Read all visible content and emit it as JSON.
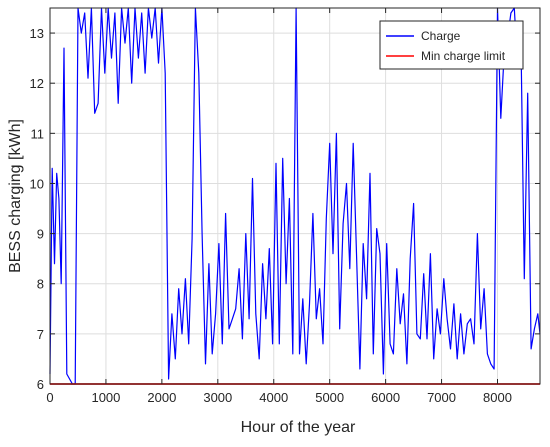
{
  "chart_data": {
    "type": "line",
    "xlabel": "Hour of the year",
    "ylabel": "BESS charging [kWh]",
    "xlim": [
      0,
      8760
    ],
    "ylim": [
      6,
      13.5
    ],
    "xticks": [
      0,
      1000,
      2000,
      3000,
      4000,
      5000,
      6000,
      7000,
      8000
    ],
    "xtick_labels": [
      "0",
      "1000",
      "2000",
      "3000",
      "4000",
      "5000",
      "6000",
      "7000",
      "8000"
    ],
    "yticks": [
      6,
      7,
      8,
      9,
      10,
      11,
      12,
      13
    ],
    "ytick_labels": [
      "6",
      "7",
      "8",
      "9",
      "10",
      "11",
      "12",
      "13"
    ],
    "grid": true,
    "legend_position": "top-right",
    "series": [
      {
        "name": "Charge",
        "color": "#0000ff",
        "sampling_note": "approximate envelope of dense hourly data",
        "x": [
          0,
          40,
          80,
          120,
          160,
          200,
          250,
          300,
          350,
          400,
          450,
          500,
          560,
          620,
          680,
          740,
          800,
          860,
          920,
          980,
          1040,
          1100,
          1160,
          1220,
          1280,
          1340,
          1400,
          1460,
          1520,
          1580,
          1640,
          1700,
          1760,
          1820,
          1880,
          1940,
          2000,
          2060,
          2120,
          2180,
          2240,
          2300,
          2360,
          2420,
          2480,
          2540,
          2600,
          2660,
          2720,
          2780,
          2840,
          2900,
          2960,
          3020,
          3080,
          3140,
          3200,
          3260,
          3320,
          3380,
          3440,
          3500,
          3560,
          3620,
          3680,
          3740,
          3800,
          3860,
          3920,
          3980,
          4040,
          4100,
          4160,
          4220,
          4280,
          4340,
          4400,
          4460,
          4520,
          4580,
          4640,
          4700,
          4760,
          4820,
          4880,
          4940,
          5000,
          5060,
          5120,
          5180,
          5240,
          5300,
          5360,
          5420,
          5480,
          5540,
          5600,
          5660,
          5720,
          5780,
          5840,
          5900,
          5960,
          6020,
          6080,
          6140,
          6200,
          6260,
          6320,
          6380,
          6440,
          6500,
          6560,
          6620,
          6680,
          6740,
          6800,
          6860,
          6920,
          6980,
          7040,
          7100,
          7160,
          7220,
          7280,
          7340,
          7400,
          7460,
          7520,
          7580,
          7640,
          7700,
          7760,
          7820,
          7880,
          7940,
          8000,
          8060,
          8120,
          8180,
          8240,
          8300,
          8360,
          8420,
          8480,
          8540,
          8600,
          8660,
          8720,
          8760
        ],
        "y": [
          6.2,
          10.3,
          8.4,
          10.2,
          9.7,
          8.0,
          12.7,
          6.2,
          6.1,
          6.0,
          6.0,
          13.5,
          13.0,
          13.4,
          12.1,
          13.5,
          11.4,
          11.6,
          13.5,
          12.2,
          13.5,
          12.5,
          13.4,
          11.6,
          13.5,
          12.8,
          13.5,
          12.0,
          13.5,
          12.5,
          13.4,
          12.2,
          13.5,
          12.9,
          13.5,
          12.4,
          13.5,
          12.2,
          6.1,
          7.4,
          6.5,
          7.9,
          7.0,
          8.1,
          6.8,
          8.9,
          13.5,
          12.2,
          9.0,
          6.4,
          8.4,
          6.6,
          7.4,
          8.8,
          6.8,
          9.4,
          7.1,
          7.3,
          7.5,
          8.3,
          6.9,
          9.0,
          7.3,
          10.1,
          7.4,
          6.5,
          8.4,
          7.3,
          8.7,
          6.8,
          10.4,
          6.8,
          10.5,
          8.0,
          9.7,
          6.6,
          13.5,
          6.6,
          7.7,
          6.4,
          7.6,
          9.4,
          7.3,
          7.9,
          6.8,
          9.3,
          10.8,
          8.6,
          11.0,
          7.1,
          9.2,
          10.0,
          8.3,
          10.8,
          8.6,
          6.3,
          8.8,
          7.7,
          10.2,
          6.6,
          9.1,
          8.6,
          6.2,
          8.8,
          6.8,
          6.6,
          8.3,
          7.2,
          7.8,
          6.4,
          8.5,
          9.6,
          7.0,
          6.9,
          8.2,
          6.9,
          8.6,
          6.5,
          7.5,
          7.0,
          8.1,
          7.3,
          6.7,
          7.6,
          6.5,
          7.4,
          6.6,
          7.2,
          7.3,
          6.8,
          9.0,
          7.1,
          7.9,
          6.6,
          6.4,
          6.3,
          13.5,
          11.3,
          12.6,
          12.9,
          13.4,
          13.5,
          12.3,
          12.8,
          8.1,
          11.8,
          6.7,
          7.1,
          7.4,
          7.0
        ]
      },
      {
        "name": "Min charge limit",
        "color": "#ff0000",
        "x": [
          0,
          8760
        ],
        "y": [
          6,
          6
        ]
      }
    ]
  }
}
